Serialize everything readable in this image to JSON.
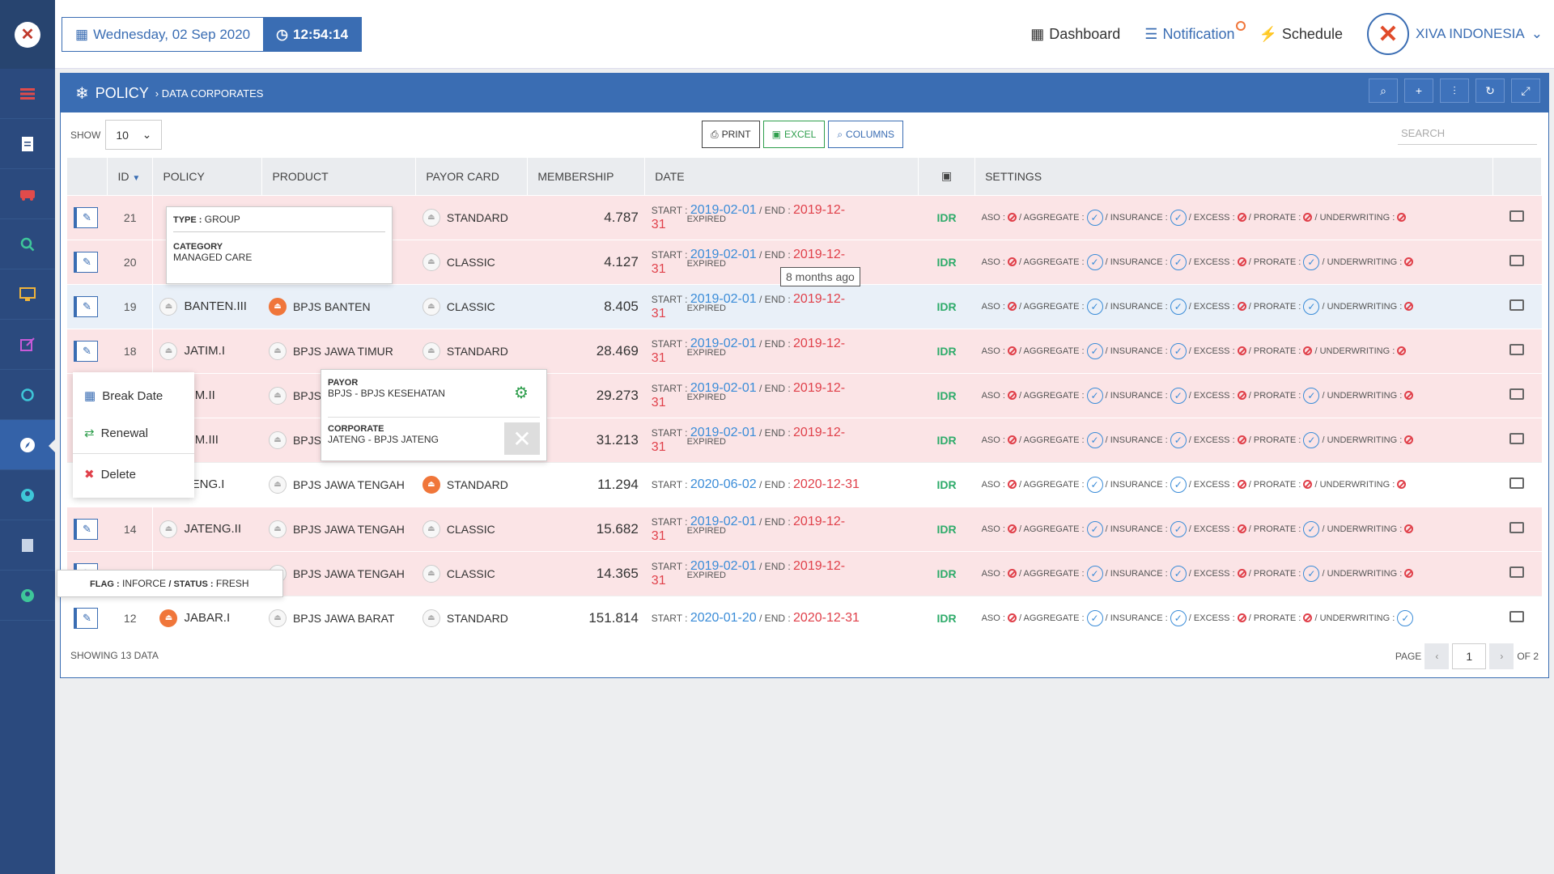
{
  "header": {
    "date": "Wednesday, 02 Sep 2020",
    "time": "12:54:14",
    "nav": {
      "dashboard": "Dashboard",
      "notification": "Notification",
      "schedule": "Schedule"
    },
    "brand": "XIVA INDONESIA"
  },
  "panel": {
    "title": "POLICY",
    "subtitle": "› DATA CORPORATES",
    "show_label": "SHOW",
    "show_value": "10",
    "print": "PRINT",
    "excel": "EXCEL",
    "columns": "COLUMNS",
    "search_placeholder": "SEARCH"
  },
  "table": {
    "headers": {
      "id": "ID",
      "policy": "POLICY",
      "product": "PRODUCT",
      "payor": "PAYOR CARD",
      "membership": "MEMBERSHIP",
      "date": "DATE",
      "settings": "SETTINGS"
    },
    "labels": {
      "start": "START :",
      "end": "/ END :",
      "expired": "EXPIRED",
      "currency": "IDR",
      "aso": "ASO :",
      "aggregate": "/ AGGREGATE :",
      "insurance": "/ INSURANCE :",
      "excess": "/ EXCESS :",
      "prorate": "/ PRORATE :",
      "underwriting": "/ UNDERWRITING :"
    },
    "rows": [
      {
        "id": "21",
        "policy": "",
        "product": "",
        "payor": "STANDARD",
        "membership": "4.787",
        "start": "2019-02-01",
        "end": "2019-12-31"
      },
      {
        "id": "20",
        "policy": "",
        "product": "",
        "payor": "CLASSIC",
        "membership": "4.127",
        "start": "2019-02-01",
        "end": "2019-12-31"
      },
      {
        "id": "19",
        "policy": "BANTEN.III",
        "product": "BPJS BANTEN",
        "payor": "CLASSIC",
        "membership": "8.405",
        "start": "2019-02-01",
        "end": "2019-12-31"
      },
      {
        "id": "18",
        "policy": "JATIM.I",
        "product": "BPJS JAWA TIMUR",
        "payor": "STANDARD",
        "membership": "28.469",
        "start": "2019-02-01",
        "end": "2019-12-31"
      },
      {
        "id": "",
        "policy": "TIM.II",
        "product": "BPJS",
        "payor": "",
        "membership": "29.273",
        "start": "2019-02-01",
        "end": "2019-12-31"
      },
      {
        "id": "",
        "policy": "TIM.III",
        "product": "BPJS",
        "payor": "",
        "membership": "31.213",
        "start": "2019-02-01",
        "end": "2019-12-31"
      },
      {
        "id": "",
        "policy": "TENG.I",
        "product": "BPJS JAWA TENGAH",
        "payor": "STANDARD",
        "membership": "11.294",
        "start": "2020-06-02",
        "end": "2020-12-31"
      },
      {
        "id": "14",
        "policy": "JATENG.II",
        "product": "BPJS JAWA TENGAH",
        "payor": "CLASSIC",
        "membership": "15.682",
        "start": "2019-02-01",
        "end": "2019-12-31"
      },
      {
        "id": "",
        "policy": "",
        "product": "BPJS JAWA TENGAH",
        "payor": "CLASSIC",
        "membership": "14.365",
        "start": "2019-02-01",
        "end": "2019-12-31"
      },
      {
        "id": "12",
        "policy": "JABAR.I",
        "product": "BPJS JAWA BARAT",
        "payor": "STANDARD",
        "membership": "151.814",
        "start": "2020-01-20",
        "end": "2020-12-31"
      }
    ]
  },
  "footer": {
    "showing": "SHOWING 13 DATA",
    "page_label": "PAGE",
    "page": "1",
    "of": "OF 2"
  },
  "popups": {
    "type_label": "TYPE :",
    "type_value": "GROUP",
    "category_label": "CATEGORY",
    "category_value": "MANAGED CARE",
    "tooltip": "8 months ago",
    "payor_label": "PAYOR",
    "payor_value": "BPJS - BPJS KESEHATAN",
    "corporate_label": "CORPORATE",
    "corporate_value": "JATENG - BPJS JATENG",
    "flag_label": "FLAG :",
    "flag_value": "INFORCE",
    "status_label": "/ STATUS :",
    "status_value": "FRESH",
    "menu": {
      "break_date": "Break Date",
      "renewal": "Renewal",
      "delete": "Delete"
    }
  },
  "colors": {
    "primary": "#3a6db3",
    "sidebar": "#2b4a7e",
    "expired_row": "#fbe4e6",
    "accent": "#f0763a"
  }
}
